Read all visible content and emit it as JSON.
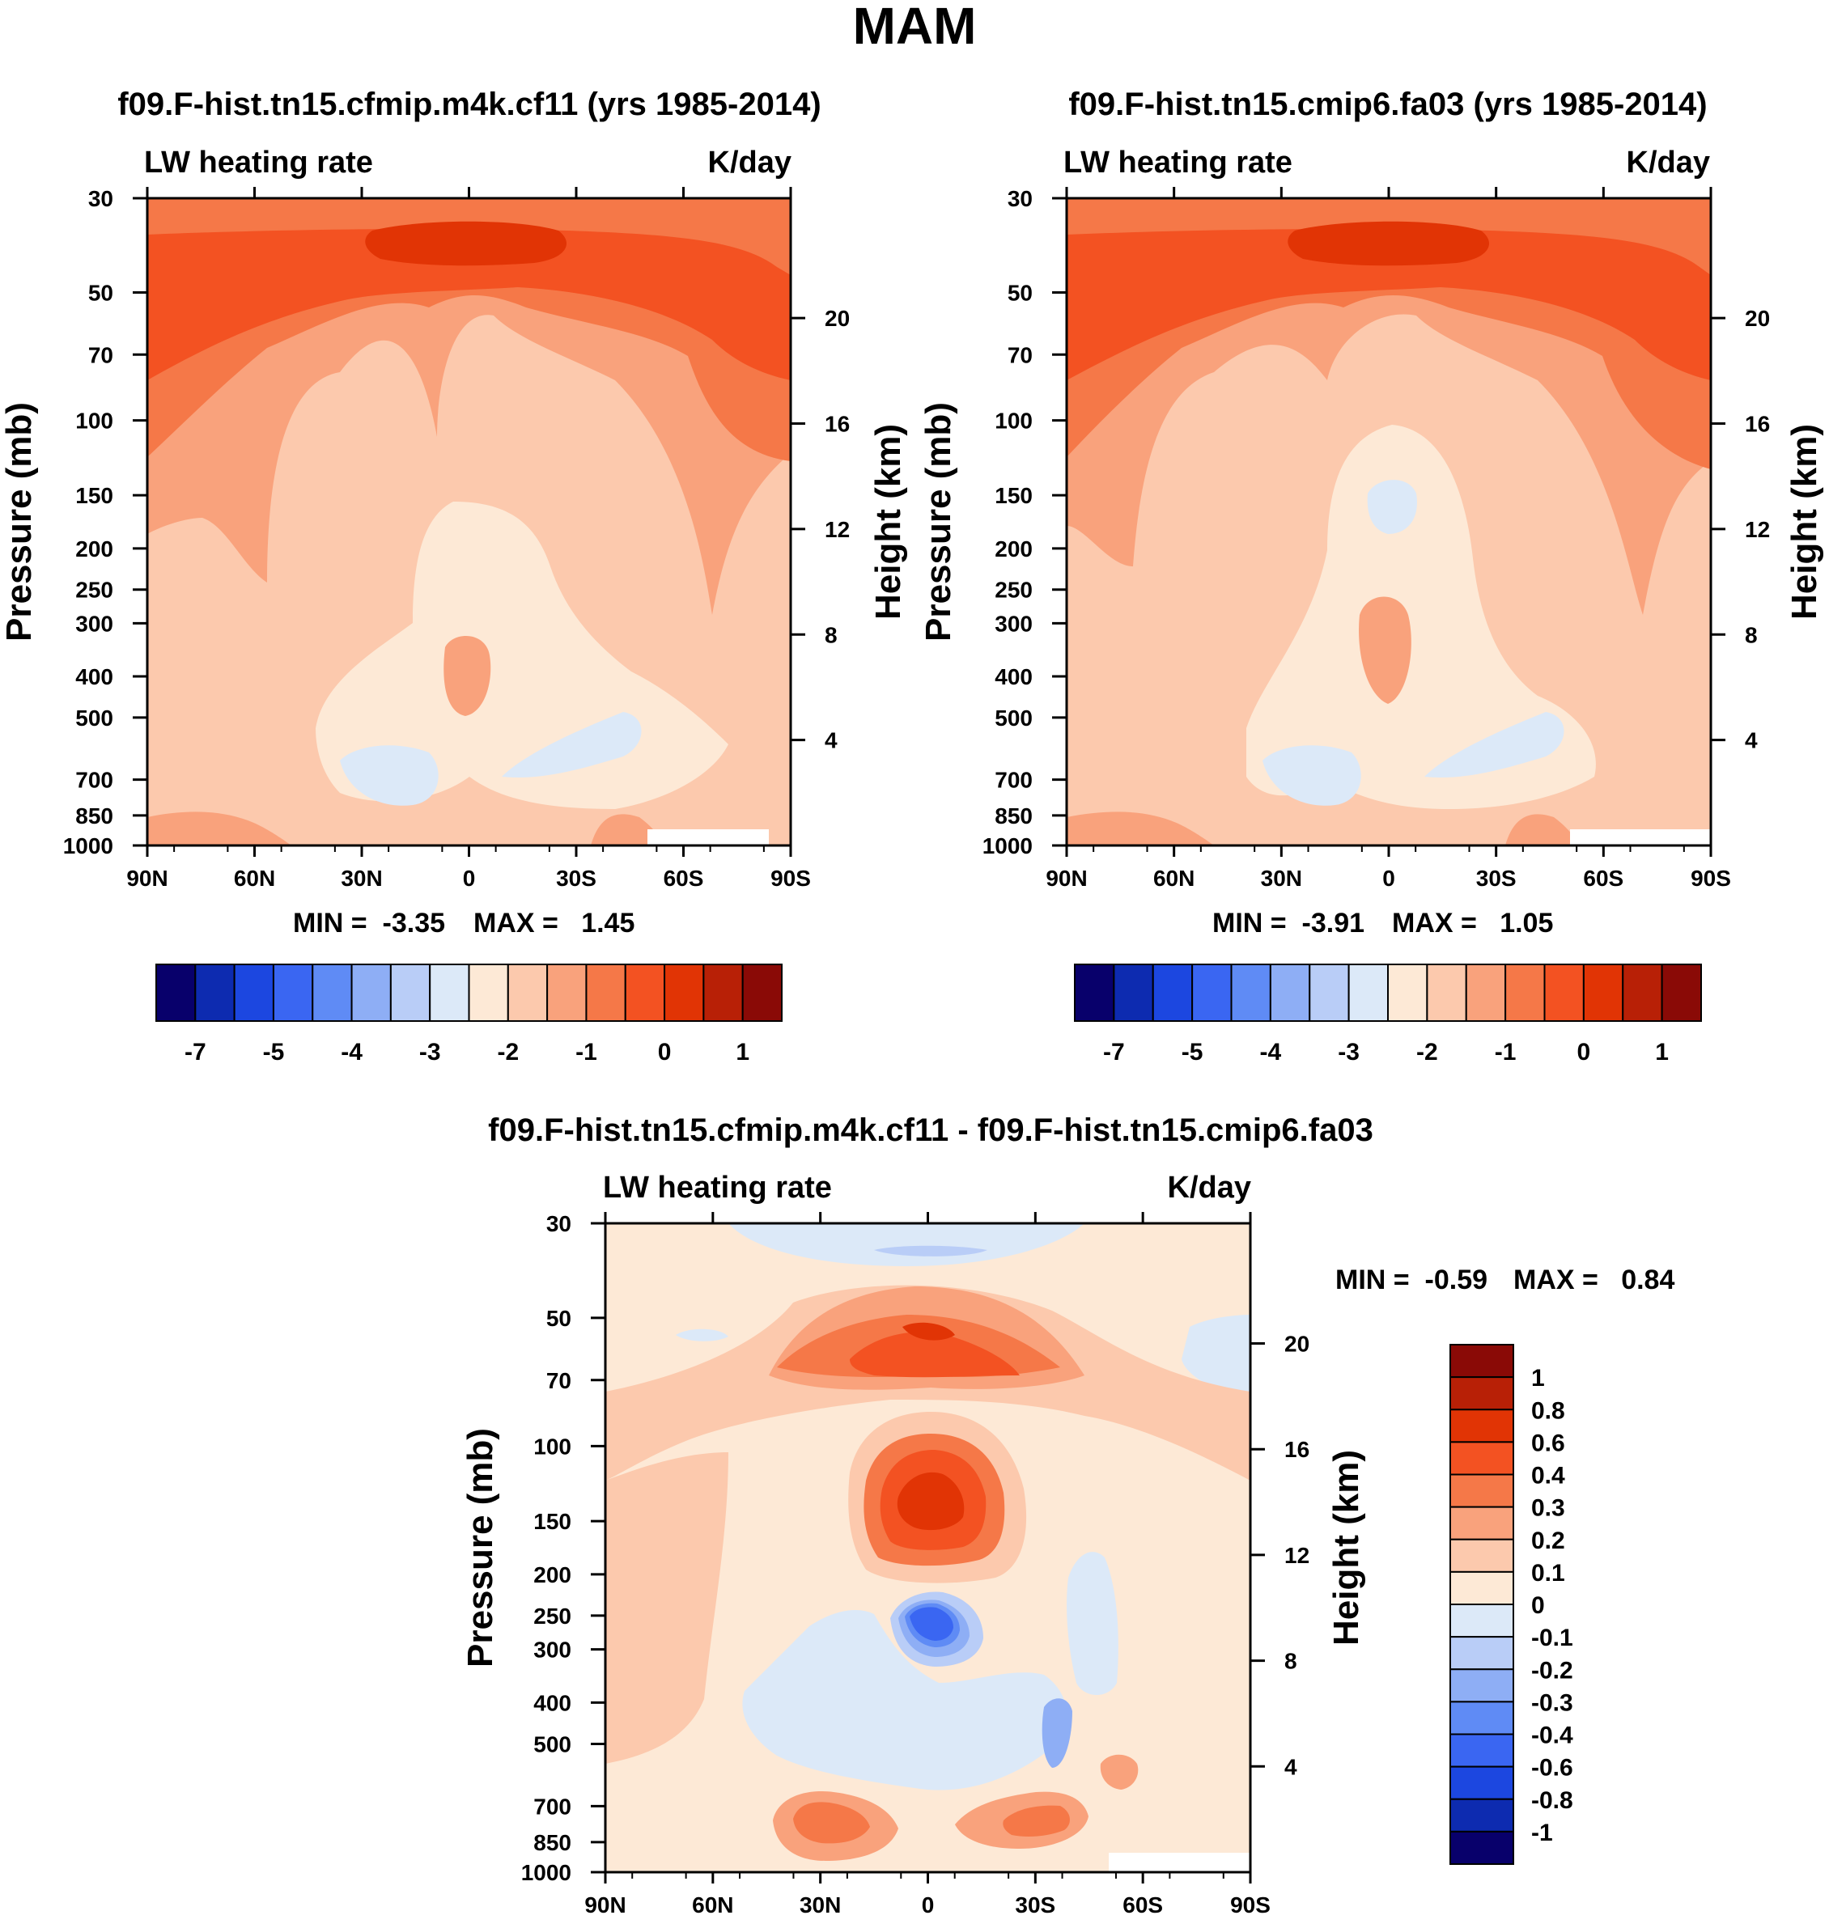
{
  "page": {
    "title": "MAM"
  },
  "chart_data": [
    {
      "type": "contour",
      "title": "f09.F-hist.tn15.cfmip.m4k.cf11 (yrs 1985-2014)",
      "subtitle_left": "LW heating rate",
      "subtitle_right": "K/day",
      "ylabel": "Pressure (mb)",
      "ylabel_right": "Height (km)",
      "x_ticks": [
        "90N",
        "60N",
        "30N",
        "0",
        "30S",
        "60S",
        "90S"
      ],
      "xlim": [
        90,
        -90
      ],
      "y_ticks": [
        30,
        50,
        70,
        100,
        150,
        200,
        250,
        300,
        400,
        500,
        700,
        850,
        1000
      ],
      "ylim": [
        1000,
        30
      ],
      "height_ticks": [
        20,
        16,
        12,
        8,
        4
      ],
      "min_label": "MIN =  -3.35",
      "max_label": "MAX =   1.45",
      "min": -3.35,
      "max": 1.45,
      "colorbar_levels": [
        "-7",
        "-5",
        "-4",
        "-3",
        "-2",
        "-1",
        "0",
        "1"
      ]
    },
    {
      "type": "contour",
      "title": "f09.F-hist.tn15.cmip6.fa03 (yrs 1985-2014)",
      "subtitle_left": "LW heating rate",
      "subtitle_right": "K/day",
      "ylabel": "Pressure (mb)",
      "ylabel_right": "Height (km)",
      "x_ticks": [
        "90N",
        "60N",
        "30N",
        "0",
        "30S",
        "60S",
        "90S"
      ],
      "xlim": [
        90,
        -90
      ],
      "y_ticks": [
        30,
        50,
        70,
        100,
        150,
        200,
        250,
        300,
        400,
        500,
        700,
        850,
        1000
      ],
      "ylim": [
        1000,
        30
      ],
      "height_ticks": [
        20,
        16,
        12,
        8,
        4
      ],
      "min_label": "MIN =  -3.91",
      "max_label": "MAX =   1.05",
      "min": -3.91,
      "max": 1.05,
      "colorbar_levels": [
        "-7",
        "-5",
        "-4",
        "-3",
        "-2",
        "-1",
        "0",
        "1"
      ]
    },
    {
      "type": "contour",
      "title": "f09.F-hist.tn15.cfmip.m4k.cf11 - f09.F-hist.tn15.cmip6.fa03",
      "subtitle_left": "LW heating rate",
      "subtitle_right": "K/day",
      "ylabel": "Pressure (mb)",
      "ylabel_right": "Height (km)",
      "x_ticks": [
        "90N",
        "60N",
        "30N",
        "0",
        "30S",
        "60S",
        "90S"
      ],
      "xlim": [
        90,
        -90
      ],
      "y_ticks": [
        30,
        50,
        70,
        100,
        150,
        200,
        250,
        300,
        400,
        500,
        700,
        850,
        1000
      ],
      "ylim": [
        1000,
        30
      ],
      "height_ticks": [
        20,
        16,
        12,
        8,
        4
      ],
      "min_label": "MIN =  -0.59",
      "max_label": "MAX =   0.84",
      "min": -0.59,
      "max": 0.84,
      "colorbar_levels": [
        "1",
        "0.8",
        "0.6",
        "0.4",
        "0.3",
        "0.2",
        "0.1",
        "0",
        "-0.1",
        "-0.2",
        "-0.3",
        "-0.4",
        "-0.6",
        "-0.8",
        "-1"
      ]
    }
  ],
  "palette": {
    "colorbar_colors": [
      "#08006b",
      "#0d2bb0",
      "#1c47e0",
      "#3a66f2",
      "#5f8bf5",
      "#8eaef5",
      "#b9cdf7",
      "#dce9f8",
      "#fde9d6",
      "#fcc9ad",
      "#f9a27c",
      "#f57848",
      "#f35222",
      "#e13405",
      "#b82006",
      "#8a0a06"
    ],
    "diff_colors": [
      "#8a0a06",
      "#b82006",
      "#e13405",
      "#f35222",
      "#f57848",
      "#f9a27c",
      "#fcc9ad",
      "#fde9d6",
      "#dce9f8",
      "#b9cdf7",
      "#8eaef5",
      "#5f8bf5",
      "#3a66f2",
      "#1c47e0",
      "#0d2bb0",
      "#08006b"
    ]
  }
}
